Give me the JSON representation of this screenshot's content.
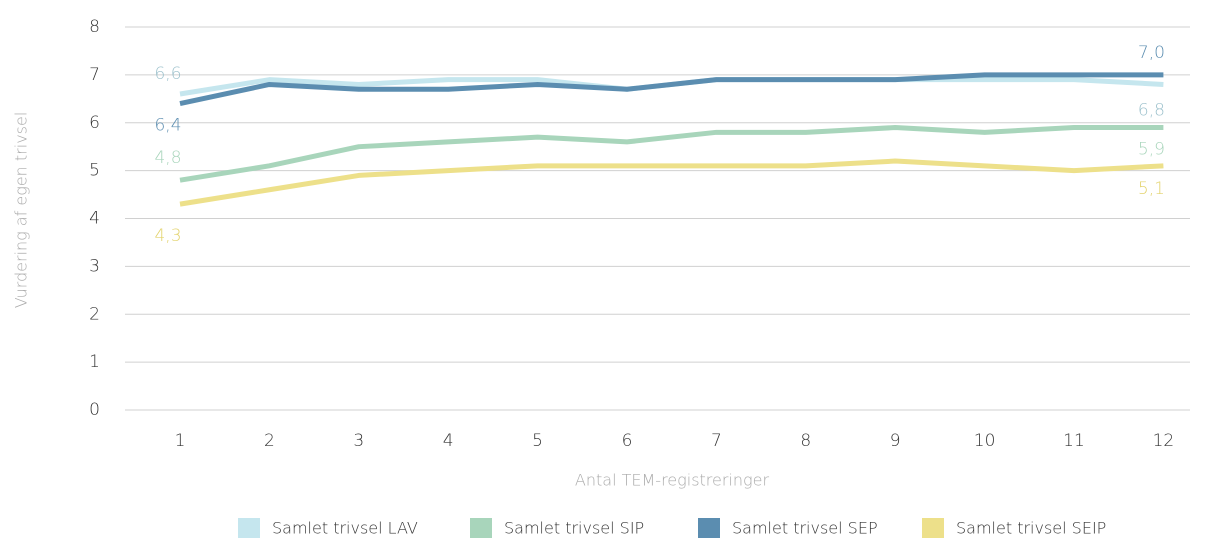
{
  "chart_data": {
    "type": "line",
    "y_label": "Vurdering af egen trivsel",
    "x_label": "Antal TEM-registreringer",
    "categories": [
      "1",
      "2",
      "3",
      "4",
      "5",
      "6",
      "7",
      "8",
      "9",
      "10",
      "11",
      "12"
    ],
    "ylim": [
      0,
      8
    ],
    "yticks": [
      0,
      1,
      2,
      3,
      4,
      5,
      6,
      7,
      8
    ],
    "grid": true,
    "legend": "bottom",
    "series": [
      {
        "name": "Samlet trivsel LAV",
        "color": "#c5e6ee",
        "values": [
          6.6,
          6.9,
          6.8,
          6.9,
          6.9,
          6.7,
          6.9,
          6.9,
          6.9,
          6.9,
          6.9,
          6.8
        ],
        "value_labels": [
          "6,6",
          null,
          null,
          null,
          null,
          null,
          null,
          null,
          null,
          null,
          null,
          "6,8"
        ]
      },
      {
        "name": "Samlet trivsel SIP",
        "color": "#a8d5bb",
        "values": [
          4.8,
          5.1,
          5.5,
          5.6,
          5.7,
          5.6,
          5.8,
          5.8,
          5.9,
          5.8,
          5.9,
          5.9
        ],
        "value_labels": [
          "4,8",
          null,
          null,
          null,
          null,
          null,
          null,
          null,
          null,
          null,
          null,
          "5,9"
        ]
      },
      {
        "name": "Samlet trivsel SEP",
        "color": "#5b8db0",
        "values": [
          6.4,
          6.8,
          6.7,
          6.7,
          6.8,
          6.7,
          6.9,
          6.9,
          6.9,
          7.0,
          7.0,
          7.0
        ],
        "value_labels": [
          "6,4",
          null,
          null,
          null,
          null,
          null,
          null,
          null,
          null,
          null,
          null,
          "7,0"
        ]
      },
      {
        "name": "Samlet trivsel SEIP",
        "color": "#ede08a",
        "values": [
          4.3,
          4.6,
          4.9,
          5.0,
          5.1,
          5.1,
          5.1,
          5.1,
          5.2,
          5.1,
          5.0,
          5.1
        ],
        "value_labels": [
          "4,3",
          null,
          null,
          null,
          null,
          null,
          null,
          null,
          null,
          null,
          null,
          "5,1"
        ]
      }
    ]
  }
}
